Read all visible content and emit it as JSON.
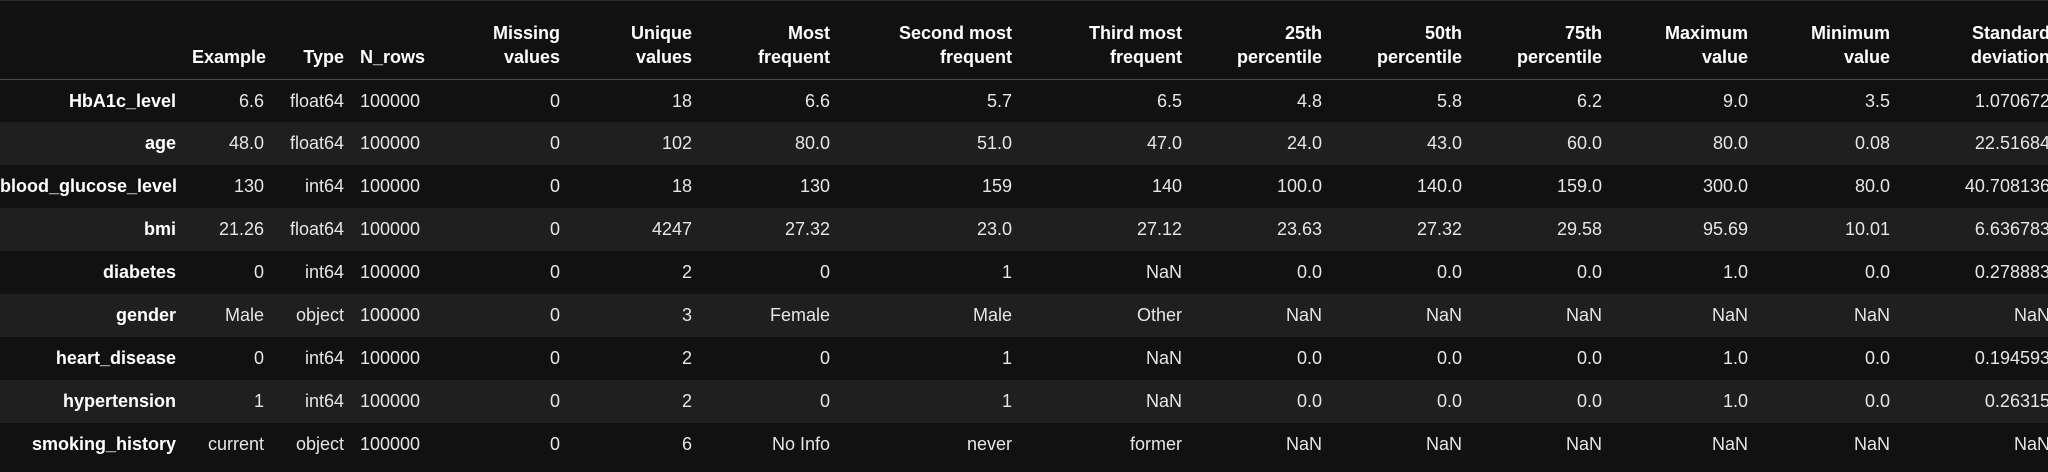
{
  "columns": [
    [
      "Example"
    ],
    [
      "Type"
    ],
    [
      "N_rows"
    ],
    [
      "Missing",
      "values"
    ],
    [
      "Unique",
      "values"
    ],
    [
      "Most",
      "frequent"
    ],
    [
      "Second most",
      "frequent"
    ],
    [
      "Third most",
      "frequent"
    ],
    [
      "25th",
      "percentile"
    ],
    [
      "50th",
      "percentile"
    ],
    [
      "75th",
      "percentile"
    ],
    [
      "Maximum",
      "value"
    ],
    [
      "Minimum",
      "value"
    ],
    [
      "Standard",
      "deviation"
    ]
  ],
  "rows": [
    {
      "index": "HbA1c_level",
      "cells": [
        "6.6",
        "float64",
        "100000",
        "0",
        "18",
        "6.6",
        "5.7",
        "6.5",
        "4.8",
        "5.8",
        "6.2",
        "9.0",
        "3.5",
        "1.070672"
      ]
    },
    {
      "index": "age",
      "cells": [
        "48.0",
        "float64",
        "100000",
        "0",
        "102",
        "80.0",
        "51.0",
        "47.0",
        "24.0",
        "43.0",
        "60.0",
        "80.0",
        "0.08",
        "22.51684"
      ]
    },
    {
      "index": "blood_glucose_level",
      "cells": [
        "130",
        "int64",
        "100000",
        "0",
        "18",
        "130",
        "159",
        "140",
        "100.0",
        "140.0",
        "159.0",
        "300.0",
        "80.0",
        "40.708136"
      ]
    },
    {
      "index": "bmi",
      "cells": [
        "21.26",
        "float64",
        "100000",
        "0",
        "4247",
        "27.32",
        "23.0",
        "27.12",
        "23.63",
        "27.32",
        "29.58",
        "95.69",
        "10.01",
        "6.636783"
      ]
    },
    {
      "index": "diabetes",
      "cells": [
        "0",
        "int64",
        "100000",
        "0",
        "2",
        "0",
        "1",
        "NaN",
        "0.0",
        "0.0",
        "0.0",
        "1.0",
        "0.0",
        "0.278883"
      ]
    },
    {
      "index": "gender",
      "cells": [
        "Male",
        "object",
        "100000",
        "0",
        "3",
        "Female",
        "Male",
        "Other",
        "NaN",
        "NaN",
        "NaN",
        "NaN",
        "NaN",
        "NaN"
      ]
    },
    {
      "index": "heart_disease",
      "cells": [
        "0",
        "int64",
        "100000",
        "0",
        "2",
        "0",
        "1",
        "NaN",
        "0.0",
        "0.0",
        "0.0",
        "1.0",
        "0.0",
        "0.194593"
      ]
    },
    {
      "index": "hypertension",
      "cells": [
        "1",
        "int64",
        "100000",
        "0",
        "2",
        "0",
        "1",
        "NaN",
        "0.0",
        "0.0",
        "0.0",
        "1.0",
        "0.0",
        "0.26315"
      ]
    },
    {
      "index": "smoking_history",
      "cells": [
        "current",
        "object",
        "100000",
        "0",
        "6",
        "No Info",
        "never",
        "former",
        "NaN",
        "NaN",
        "NaN",
        "NaN",
        "NaN",
        "NaN"
      ]
    }
  ]
}
